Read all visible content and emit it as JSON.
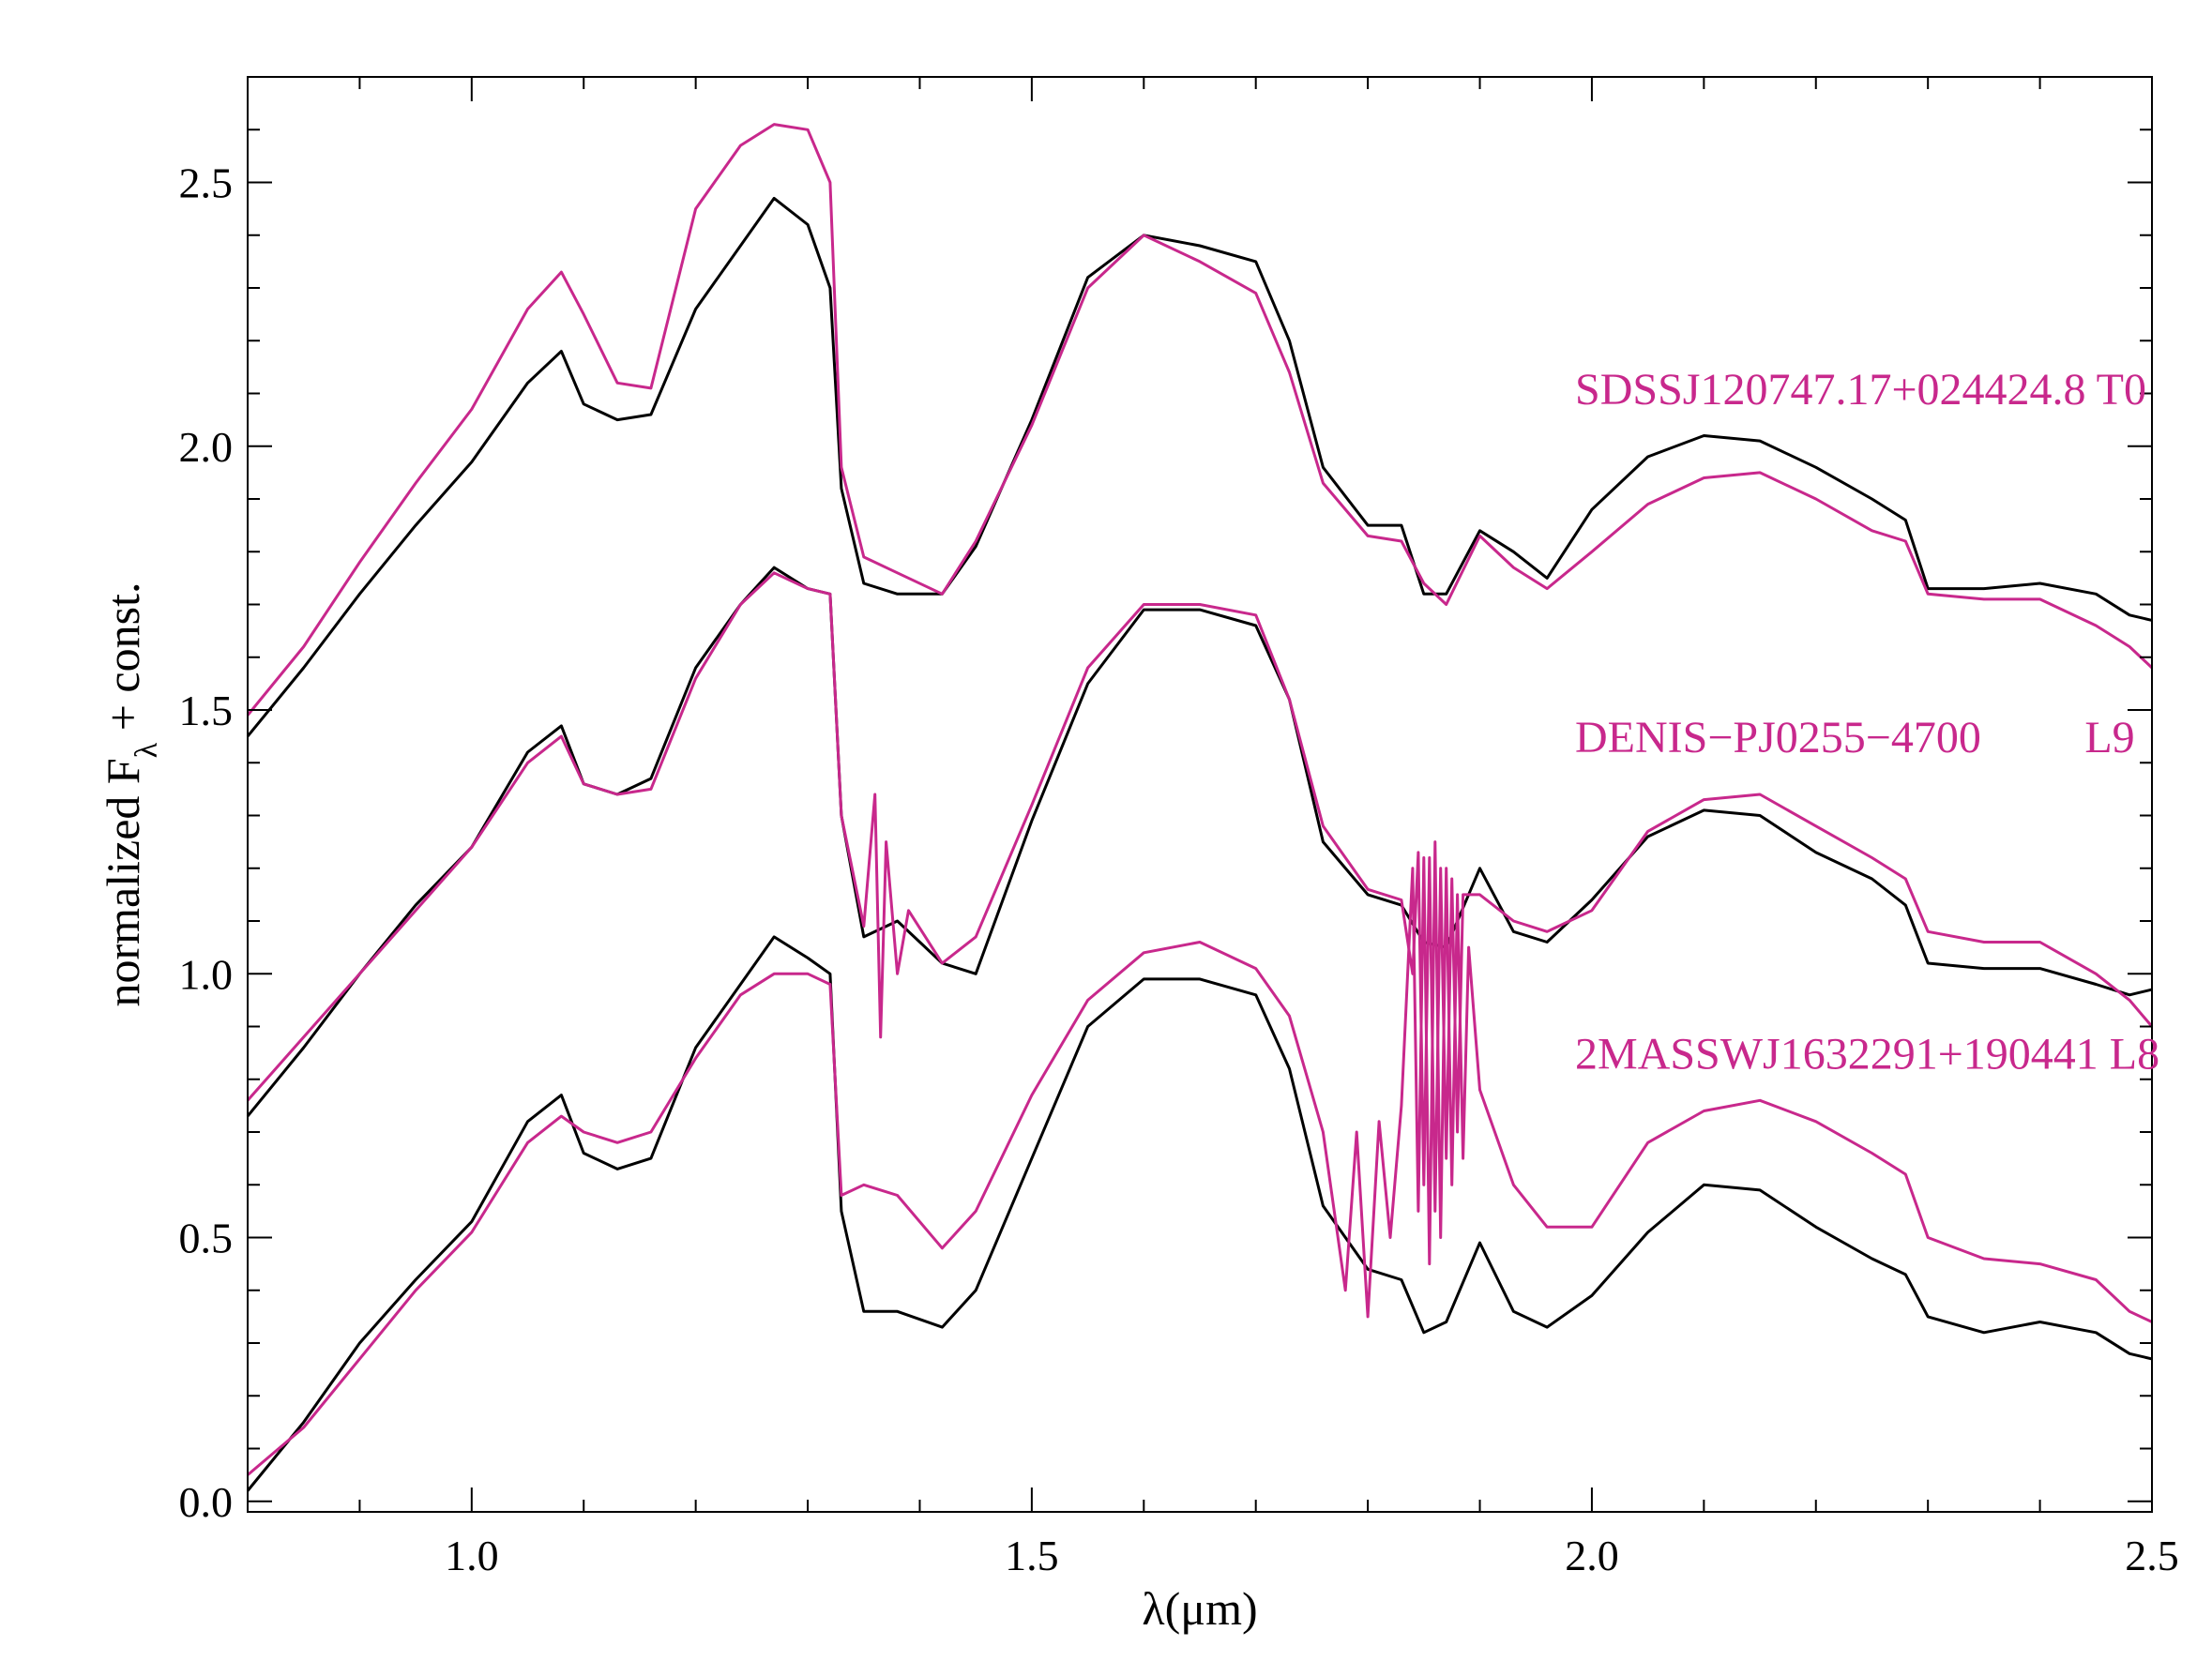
{
  "chart_data": {
    "type": "line",
    "title": "",
    "xlabel": "λ(μm)",
    "ylabel": "normalized F",
    "ylabel_subscript": "λ",
    "ylabel_suffix": " + const.",
    "xlim": [
      0.8,
      2.5
    ],
    "ylim": [
      -0.02,
      2.7
    ],
    "x_ticks": [
      1.0,
      1.5,
      2.0,
      2.5
    ],
    "x_tick_labels": [
      "1.0",
      "1.5",
      "2.0",
      "2.5"
    ],
    "x_minor_step": 0.1,
    "y_ticks": [
      0.0,
      0.5,
      1.0,
      1.5,
      2.0,
      2.5
    ],
    "y_tick_labels": [
      "0.0",
      "0.5",
      "1.0",
      "1.5",
      "2.0",
      "2.5"
    ],
    "y_minor_step": 0.1,
    "grid": false,
    "colors": {
      "observed": "#000000",
      "model": "#c8288c"
    },
    "annotations": [
      {
        "text": "SDSSJ120747.17+024424.8  T0",
        "x": 1.985,
        "y": 2.08,
        "color": "#c8288c"
      },
      {
        "text": "DENIS−PJ0255−4700",
        "x": 1.985,
        "y": 1.42,
        "color": "#c8288c"
      },
      {
        "text": "L9",
        "x": 2.44,
        "y": 1.42,
        "color": "#c8288c"
      },
      {
        "text": "2MASSWJ1632291+190441 L8",
        "x": 1.985,
        "y": 0.82,
        "color": "#c8288c"
      }
    ],
    "series": [
      {
        "role": "observed",
        "color": "#000000",
        "x": [
          0.8,
          0.85,
          0.9,
          0.95,
          1.0,
          1.05,
          1.08,
          1.1,
          1.13,
          1.16,
          1.2,
          1.24,
          1.27,
          1.3,
          1.32,
          1.33,
          1.35,
          1.38,
          1.42,
          1.45,
          1.5,
          1.55,
          1.6,
          1.65,
          1.7,
          1.73,
          1.76,
          1.8,
          1.83,
          1.85,
          1.87,
          1.9,
          1.93,
          1.96,
          2.0,
          2.05,
          2.1,
          2.15,
          2.2,
          2.25,
          2.28,
          2.3,
          2.35,
          2.4,
          2.45,
          2.48,
          2.5
        ],
        "y": [
          1.45,
          1.58,
          1.72,
          1.85,
          1.97,
          2.12,
          2.18,
          2.08,
          2.05,
          2.06,
          2.26,
          2.38,
          2.47,
          2.42,
          2.3,
          1.92,
          1.74,
          1.72,
          1.72,
          1.81,
          2.05,
          2.32,
          2.4,
          2.38,
          2.35,
          2.2,
          1.96,
          1.85,
          1.85,
          1.72,
          1.72,
          1.84,
          1.8,
          1.75,
          1.88,
          1.98,
          2.02,
          2.01,
          1.96,
          1.9,
          1.86,
          1.73,
          1.73,
          1.74,
          1.72,
          1.68,
          1.67
        ]
      },
      {
        "role": "model",
        "color": "#c8288c",
        "x": [
          0.8,
          0.85,
          0.9,
          0.95,
          1.0,
          1.05,
          1.08,
          1.1,
          1.13,
          1.16,
          1.2,
          1.24,
          1.27,
          1.3,
          1.32,
          1.33,
          1.35,
          1.38,
          1.42,
          1.45,
          1.5,
          1.55,
          1.6,
          1.65,
          1.7,
          1.73,
          1.76,
          1.8,
          1.83,
          1.85,
          1.87,
          1.9,
          1.93,
          1.96,
          2.0,
          2.05,
          2.1,
          2.15,
          2.2,
          2.25,
          2.28,
          2.3,
          2.35,
          2.4,
          2.45,
          2.48,
          2.5
        ],
        "y": [
          1.49,
          1.62,
          1.78,
          1.93,
          2.07,
          2.26,
          2.33,
          2.25,
          2.12,
          2.11,
          2.45,
          2.57,
          2.61,
          2.6,
          2.5,
          1.96,
          1.79,
          1.76,
          1.72,
          1.82,
          2.04,
          2.3,
          2.4,
          2.35,
          2.29,
          2.14,
          1.93,
          1.83,
          1.82,
          1.74,
          1.7,
          1.83,
          1.77,
          1.73,
          1.8,
          1.89,
          1.94,
          1.95,
          1.9,
          1.84,
          1.82,
          1.72,
          1.71,
          1.71,
          1.66,
          1.62,
          1.58
        ]
      },
      {
        "role": "observed",
        "color": "#000000",
        "x": [
          0.8,
          0.85,
          0.9,
          0.95,
          1.0,
          1.05,
          1.08,
          1.1,
          1.13,
          1.16,
          1.2,
          1.24,
          1.27,
          1.3,
          1.32,
          1.33,
          1.35,
          1.38,
          1.42,
          1.45,
          1.5,
          1.55,
          1.6,
          1.65,
          1.7,
          1.73,
          1.76,
          1.8,
          1.83,
          1.85,
          1.87,
          1.9,
          1.93,
          1.96,
          2.0,
          2.05,
          2.1,
          2.15,
          2.2,
          2.25,
          2.28,
          2.3,
          2.35,
          2.4,
          2.45,
          2.48,
          2.5
        ],
        "y": [
          0.73,
          0.86,
          1.0,
          1.13,
          1.24,
          1.42,
          1.47,
          1.36,
          1.34,
          1.37,
          1.58,
          1.7,
          1.77,
          1.73,
          1.72,
          1.3,
          1.07,
          1.1,
          1.02,
          1.0,
          1.29,
          1.55,
          1.69,
          1.69,
          1.66,
          1.52,
          1.25,
          1.15,
          1.13,
          1.06,
          1.05,
          1.2,
          1.08,
          1.06,
          1.14,
          1.26,
          1.31,
          1.3,
          1.23,
          1.18,
          1.13,
          1.02,
          1.01,
          1.01,
          0.98,
          0.96,
          0.97
        ]
      },
      {
        "role": "model",
        "color": "#c8288c",
        "x": [
          0.8,
          0.85,
          0.9,
          0.95,
          1.0,
          1.05,
          1.08,
          1.1,
          1.13,
          1.16,
          1.2,
          1.24,
          1.27,
          1.3,
          1.32,
          1.33,
          1.35,
          1.36,
          1.365,
          1.37,
          1.38,
          1.39,
          1.42,
          1.45,
          1.5,
          1.55,
          1.6,
          1.65,
          1.7,
          1.73,
          1.76,
          1.8,
          1.83,
          1.84,
          1.845,
          1.85,
          1.855,
          1.86,
          1.865,
          1.87,
          1.875,
          1.88,
          1.885,
          1.9,
          1.93,
          1.96,
          2.0,
          2.05,
          2.1,
          2.15,
          2.2,
          2.25,
          2.28,
          2.3,
          2.35,
          2.4,
          2.45,
          2.48,
          2.5
        ],
        "y": [
          0.76,
          0.88,
          1.0,
          1.12,
          1.24,
          1.4,
          1.45,
          1.36,
          1.34,
          1.35,
          1.56,
          1.7,
          1.76,
          1.73,
          1.72,
          1.3,
          1.09,
          1.34,
          0.88,
          1.25,
          1.0,
          1.12,
          1.02,
          1.07,
          1.32,
          1.58,
          1.7,
          1.7,
          1.68,
          1.52,
          1.28,
          1.16,
          1.14,
          1.0,
          1.23,
          0.6,
          1.22,
          0.55,
          1.2,
          0.65,
          1.18,
          0.7,
          1.15,
          1.15,
          1.1,
          1.08,
          1.12,
          1.27,
          1.33,
          1.34,
          1.28,
          1.22,
          1.18,
          1.08,
          1.06,
          1.06,
          1.0,
          0.95,
          0.9
        ]
      },
      {
        "role": "observed",
        "color": "#000000",
        "x": [
          0.8,
          0.85,
          0.9,
          0.95,
          1.0,
          1.05,
          1.08,
          1.1,
          1.13,
          1.16,
          1.2,
          1.24,
          1.27,
          1.3,
          1.32,
          1.33,
          1.35,
          1.38,
          1.42,
          1.45,
          1.5,
          1.55,
          1.6,
          1.65,
          1.7,
          1.73,
          1.76,
          1.8,
          1.83,
          1.85,
          1.87,
          1.9,
          1.93,
          1.96,
          2.0,
          2.05,
          2.1,
          2.15,
          2.2,
          2.25,
          2.28,
          2.3,
          2.35,
          2.4,
          2.45,
          2.48,
          2.5
        ],
        "y": [
          0.02,
          0.15,
          0.3,
          0.42,
          0.53,
          0.72,
          0.77,
          0.66,
          0.63,
          0.65,
          0.86,
          0.98,
          1.07,
          1.03,
          1.0,
          0.55,
          0.36,
          0.36,
          0.33,
          0.4,
          0.65,
          0.9,
          0.99,
          0.99,
          0.96,
          0.82,
          0.56,
          0.44,
          0.42,
          0.32,
          0.34,
          0.49,
          0.36,
          0.33,
          0.39,
          0.51,
          0.6,
          0.59,
          0.52,
          0.46,
          0.43,
          0.35,
          0.32,
          0.34,
          0.32,
          0.28,
          0.27
        ]
      },
      {
        "role": "model",
        "color": "#c8288c",
        "x": [
          0.8,
          0.85,
          0.9,
          0.95,
          1.0,
          1.05,
          1.08,
          1.1,
          1.13,
          1.16,
          1.2,
          1.24,
          1.27,
          1.3,
          1.32,
          1.33,
          1.35,
          1.38,
          1.42,
          1.45,
          1.5,
          1.55,
          1.6,
          1.65,
          1.7,
          1.73,
          1.76,
          1.78,
          1.79,
          1.8,
          1.81,
          1.82,
          1.83,
          1.84,
          1.845,
          1.85,
          1.855,
          1.86,
          1.865,
          1.87,
          1.875,
          1.88,
          1.885,
          1.89,
          1.9,
          1.93,
          1.96,
          2.0,
          2.05,
          2.1,
          2.15,
          2.2,
          2.25,
          2.28,
          2.3,
          2.35,
          2.4,
          2.45,
          2.48,
          2.5
        ],
        "y": [
          0.05,
          0.14,
          0.27,
          0.4,
          0.51,
          0.68,
          0.73,
          0.7,
          0.68,
          0.7,
          0.84,
          0.96,
          1.0,
          1.0,
          0.98,
          0.58,
          0.6,
          0.58,
          0.48,
          0.55,
          0.77,
          0.95,
          1.04,
          1.06,
          1.01,
          0.92,
          0.7,
          0.4,
          0.7,
          0.35,
          0.72,
          0.5,
          0.75,
          1.2,
          0.55,
          1.22,
          0.45,
          1.25,
          0.5,
          1.2,
          0.6,
          1.15,
          0.65,
          1.05,
          0.78,
          0.6,
          0.52,
          0.52,
          0.68,
          0.74,
          0.76,
          0.72,
          0.66,
          0.62,
          0.5,
          0.46,
          0.45,
          0.42,
          0.36,
          0.34
        ]
      }
    ]
  }
}
